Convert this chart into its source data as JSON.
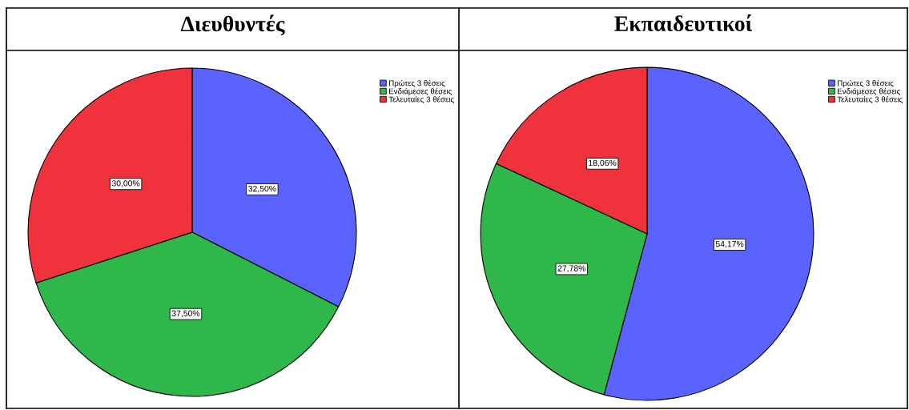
{
  "chart_data": [
    {
      "type": "pie",
      "title": "Διευθυντές",
      "categories": [
        "Πρώτες 3 θέσεις",
        "Ενδιάμεσες θέσεις",
        "Τελευταίες 3 θέσεις"
      ],
      "values": [
        32.5,
        37.5,
        30.0
      ],
      "colors": [
        "#5b63ff",
        "#2fb84a",
        "#ef323c"
      ],
      "value_labels": [
        "32,50%",
        "37,50%",
        "30,00%"
      ],
      "legend": "top right"
    },
    {
      "type": "pie",
      "title": "Εκπαιδευτικοί",
      "categories": [
        "Πρώτες 3 θέσεις",
        "Ενδιάμεσες θέσεις",
        "Τελευταίες 3 θέσεις"
      ],
      "values": [
        54.17,
        27.78,
        18.06
      ],
      "colors": [
        "#5b63ff",
        "#2fb84a",
        "#ef323c"
      ],
      "value_labels": [
        "54,17%",
        "27,78%",
        "18,06%"
      ],
      "legend": "top right"
    }
  ]
}
